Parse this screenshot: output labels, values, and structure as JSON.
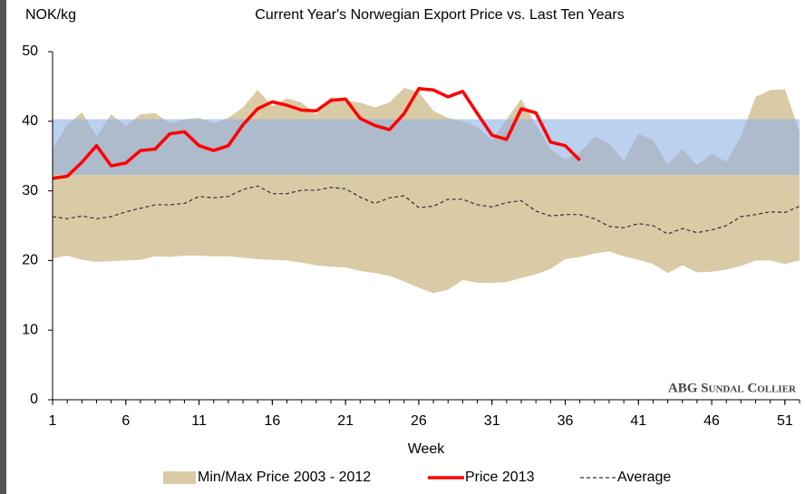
{
  "chart_data": {
    "type": "line",
    "title": "Current Year's Norwegian Export Price vs. Last Ten Years",
    "y_label": "NOK/kg",
    "x_label": "Week",
    "annotation": "ABG Sundal Collier",
    "x": [
      1,
      2,
      3,
      4,
      5,
      6,
      7,
      8,
      9,
      10,
      11,
      12,
      13,
      14,
      15,
      16,
      17,
      18,
      19,
      20,
      21,
      22,
      23,
      24,
      25,
      26,
      27,
      28,
      29,
      30,
      31,
      32,
      33,
      34,
      35,
      36,
      37,
      38,
      39,
      40,
      41,
      42,
      43,
      44,
      45,
      46,
      47,
      48,
      49,
      50,
      51,
      52
    ],
    "xlim": [
      1,
      52
    ],
    "xticks": [
      1,
      6,
      11,
      16,
      21,
      26,
      31,
      36,
      41,
      46,
      51
    ],
    "ylim": [
      0,
      50
    ],
    "yticks": [
      0,
      10,
      20,
      30,
      40,
      50
    ],
    "highlight_band": {
      "range": [
        32.3,
        40.3
      ],
      "color": "#8fb0e6"
    },
    "series": [
      {
        "name": "Min/Max Price 2003 - 2012",
        "color": "#d9cba6",
        "style": "band",
        "high": [
          36,
          39.5,
          41.3,
          37.8,
          41,
          39.3,
          41,
          41.2,
          39.7,
          40.3,
          40.5,
          39.7,
          40.5,
          42,
          44.5,
          42.2,
          43.3,
          42.7,
          41,
          43.5,
          43,
          42.7,
          42,
          42.7,
          44.8,
          44.2,
          41.5,
          40.5,
          40,
          39.2,
          37.3,
          40.3,
          43.2,
          39.5,
          36,
          34.5,
          35.5,
          37.8,
          36.8,
          34.3,
          38.2,
          37.3,
          33.7,
          36,
          33.7,
          35.3,
          34.2,
          37.8,
          43.5,
          44.5,
          44.6,
          38.5
        ],
        "low": [
          20.3,
          20.7,
          20.1,
          19.8,
          19.9,
          20,
          20.1,
          20.6,
          20.5,
          20.7,
          20.7,
          20.6,
          20.6,
          20.4,
          20.2,
          20.1,
          20,
          19.7,
          19.3,
          19.1,
          19,
          18.5,
          18.2,
          17.8,
          17,
          16.1,
          15.3,
          15.8,
          17.2,
          16.8,
          16.8,
          16.9,
          17.5,
          18,
          18.8,
          20.2,
          20.5,
          21,
          21.3,
          20.6,
          20.1,
          19.5,
          18.2,
          19.3,
          18.3,
          18.4,
          18.7,
          19.2,
          20,
          20,
          19.5,
          20
        ]
      },
      {
        "name": "Price 2013",
        "color": "#ff0000",
        "style": "solid",
        "values": [
          31.8,
          32.1,
          34.1,
          36.5,
          33.6,
          34,
          35.8,
          36,
          38.2,
          38.5,
          36.5,
          35.8,
          36.5,
          39.5,
          41.8,
          42.8,
          42.3,
          41.6,
          41.5,
          43,
          43.2,
          40.4,
          39.4,
          38.8,
          41.1,
          44.7,
          44.5,
          43.5,
          44.3,
          41.1,
          38,
          37.4,
          41.8,
          41.2,
          37,
          36.5,
          34.4,
          null,
          null,
          null,
          null,
          null,
          null,
          null,
          null,
          null,
          null,
          null,
          null,
          null,
          null,
          null
        ]
      },
      {
        "name": "Average",
        "color": "#333333",
        "style": "dashed",
        "values": [
          26.3,
          26,
          26.4,
          26,
          26.3,
          27,
          27.5,
          28,
          28,
          28.2,
          29.2,
          29,
          29.2,
          30.2,
          30.7,
          29.6,
          29.6,
          30.1,
          30.1,
          30.5,
          30.3,
          29.1,
          28.2,
          29,
          29.3,
          27.6,
          27.8,
          28.8,
          28.8,
          28,
          27.7,
          28.3,
          28.6,
          27.1,
          26.4,
          26.6,
          26.6,
          26,
          24.9,
          24.7,
          25.3,
          25,
          23.8,
          24.6,
          24,
          24.4,
          25,
          26.3,
          26.6,
          27,
          26.9,
          27.8
        ]
      }
    ]
  }
}
